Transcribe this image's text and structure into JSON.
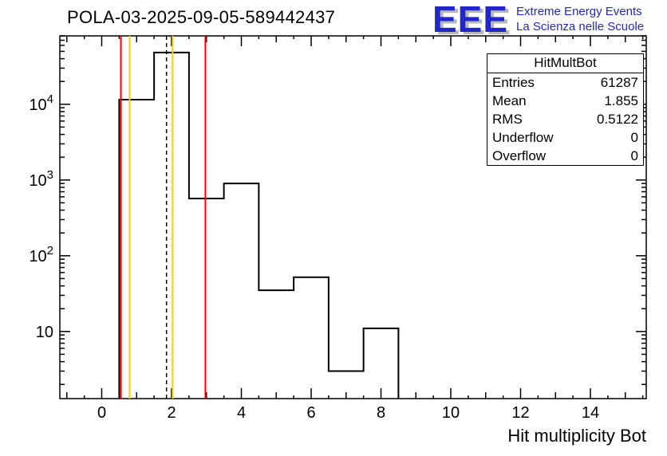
{
  "header": {
    "title": "POLA-03-2025-09-05-589442437"
  },
  "logo": {
    "acronym": "EEE",
    "line1": "Extreme Energy Events",
    "line2": "La Scienza nelle Scuole",
    "color": "#2228c8"
  },
  "stats_box": {
    "title": "HitMultBot",
    "rows": [
      {
        "label": "Entries",
        "value": "61287"
      },
      {
        "label": "Mean",
        "value": "1.855"
      },
      {
        "label": "RMS",
        "value": "0.5122"
      },
      {
        "label": "Underflow",
        "value": "0"
      },
      {
        "label": "Overflow",
        "value": "0"
      }
    ]
  },
  "axes": {
    "x_title": "Hit multiplicity Bot",
    "x_labeled_ticks": [
      0,
      2,
      4,
      6,
      8,
      10,
      12,
      14
    ],
    "x_minor_step": 0.5,
    "y_labeled_decades": [
      1,
      2,
      3,
      4
    ],
    "xlim": [
      -1.2,
      15.6
    ],
    "ylim": [
      1.3,
      80000
    ],
    "y_scale": "log"
  },
  "chart_data": {
    "type": "histogram",
    "title": "POLA-03-2025-09-05-589442437",
    "xlabel": "Hit multiplicity Bot",
    "ylabel": "",
    "x_range": [
      -1.2,
      15.6
    ],
    "y_range": [
      1.3,
      80000
    ],
    "y_scale": "log",
    "grid": false,
    "bin_edges": [
      0.5,
      1.5,
      2.5,
      3.5,
      4.5,
      5.5,
      6.5,
      7.5,
      8.5
    ],
    "counts": [
      11500,
      48200,
      570,
      900,
      35,
      52,
      3,
      11
    ],
    "histogram_color": "#000000",
    "marker_lines": [
      {
        "x": 0.55,
        "color": "#ff0000",
        "style": "solid",
        "name": "red-line-left"
      },
      {
        "x": 0.8,
        "color": "#ffcc00",
        "style": "solid",
        "name": "orange-line-left"
      },
      {
        "x": 1.855,
        "color": "#000000",
        "style": "dashed",
        "name": "mean-dashed-line"
      },
      {
        "x": 2.03,
        "color": "#ffcc00",
        "style": "solid",
        "name": "orange-line-right"
      },
      {
        "x": 2.97,
        "color": "#ff0000",
        "style": "solid",
        "name": "red-line-right"
      }
    ],
    "stats": {
      "entries": 61287,
      "mean": 1.855,
      "rms": 0.5122,
      "underflow": 0,
      "overflow": 0
    }
  }
}
